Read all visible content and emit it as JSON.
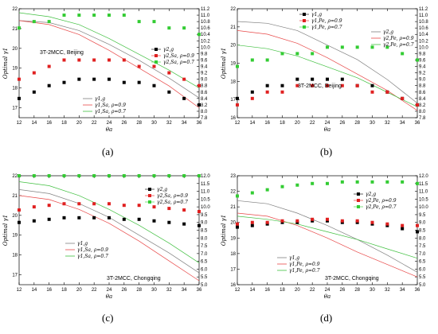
{
  "chart_data": [
    {
      "type": "line",
      "caption": "(a)",
      "site_label": "3T-2MCC, Beijing",
      "xlabel": "θa",
      "ylabel": "Optimal γ1",
      "xlim": [
        12,
        36
      ],
      "ylim": [
        16.5,
        22
      ],
      "y2lim": [
        7.8,
        11.2
      ],
      "xticks": [
        12,
        14,
        16,
        18,
        20,
        22,
        24,
        26,
        28,
        30,
        32,
        34,
        36
      ],
      "yticks": [
        17,
        18,
        19,
        20,
        21,
        22
      ],
      "y2ticks": [
        7.8,
        8.0,
        8.2,
        8.4,
        8.6,
        8.8,
        9.0,
        9.2,
        9.4,
        9.6,
        9.8,
        10.0,
        10.2,
        10.4,
        10.6,
        10.8,
        11.0,
        11.2
      ],
      "legend_upper": [
        "γ2,g",
        "γ2,Sa, ρ=0.9",
        "γ2,Sa, ρ=0.7"
      ],
      "legend_lower": [
        "γ1,g",
        "γ1,Sa, ρ=0.9",
        "γ1,Sa, ρ=0.7"
      ],
      "series": [
        {
          "style": "line",
          "color": "#808080",
          "axis": "left",
          "x": [
            12,
            16,
            20,
            24,
            28,
            32,
            36
          ],
          "y": [
            21.4,
            21.3,
            20.9,
            20.2,
            19.4,
            18.5,
            17.5
          ]
        },
        {
          "style": "line",
          "color": "#e84848",
          "axis": "left",
          "x": [
            12,
            16,
            20,
            24,
            28,
            32,
            36
          ],
          "y": [
            21.4,
            21.2,
            20.7,
            19.9,
            19.0,
            18.1,
            17.0
          ]
        },
        {
          "style": "line",
          "color": "#40c040",
          "axis": "left",
          "x": [
            12,
            16,
            20,
            24,
            28,
            32,
            36
          ],
          "y": [
            21.8,
            21.6,
            21.2,
            20.5,
            19.7,
            18.9,
            18.0
          ]
        },
        {
          "style": "markers",
          "color": "#000000",
          "axis": "right",
          "x": [
            12,
            14,
            16,
            18,
            20,
            22,
            24,
            26,
            28,
            30,
            32,
            34,
            36
          ],
          "y": [
            8.4,
            8.6,
            8.8,
            8.9,
            9.0,
            9.0,
            9.0,
            8.9,
            8.9,
            8.8,
            8.6,
            8.4,
            8.2
          ]
        },
        {
          "style": "markers",
          "color": "#e02020",
          "axis": "right",
          "x": [
            12,
            14,
            16,
            18,
            20,
            22,
            24,
            26,
            28,
            30,
            32,
            34,
            36
          ],
          "y": [
            9.0,
            9.2,
            9.4,
            9.6,
            9.6,
            9.6,
            9.6,
            9.6,
            9.4,
            9.4,
            9.2,
            9.0,
            8.8
          ]
        },
        {
          "style": "markers",
          "color": "#33cc33",
          "axis": "right",
          "x": [
            12,
            14,
            16,
            18,
            20,
            22,
            24,
            26,
            28,
            30,
            32,
            34,
            36
          ],
          "y": [
            10.6,
            10.8,
            10.8,
            11.0,
            11.0,
            11.0,
            11.0,
            11.0,
            10.8,
            10.8,
            10.6,
            10.6,
            10.4
          ]
        }
      ]
    },
    {
      "type": "line",
      "caption": "(b)",
      "site_label": "3T-2MCC, Beijing",
      "xlabel": "θa",
      "ylabel": "Optimal γ1",
      "xlim": [
        12,
        36
      ],
      "ylim": [
        16,
        22
      ],
      "y2lim": [
        7.8,
        11.2
      ],
      "xticks": [
        12,
        14,
        16,
        18,
        20,
        22,
        24,
        26,
        28,
        30,
        32,
        34,
        36
      ],
      "yticks": [
        16,
        17,
        18,
        19,
        20,
        21,
        22
      ],
      "y2ticks": [
        7.8,
        8.0,
        8.2,
        8.4,
        8.6,
        8.8,
        9.0,
        9.2,
        9.4,
        9.6,
        9.8,
        10.0,
        10.2,
        10.4,
        10.6,
        10.8,
        11.0,
        11.2
      ],
      "legend_upper": [
        "γ1,g",
        "γ1,Pe, ρ=0.9",
        "γ1,Pe, ρ=0.7"
      ],
      "legend_lower": [
        "γ2,g",
        "γ2,Pe, ρ=0.9",
        "γ2,Pe, ρ=0.7"
      ],
      "series": [
        {
          "style": "line",
          "color": "#808080",
          "axis": "left",
          "x": [
            12,
            16,
            20,
            24,
            28,
            32,
            36
          ],
          "y": [
            21.3,
            21.2,
            20.8,
            20.0,
            19.2,
            18.1,
            16.8
          ]
        },
        {
          "style": "line",
          "color": "#e84848",
          "axis": "left",
          "x": [
            12,
            16,
            20,
            24,
            28,
            32,
            36
          ],
          "y": [
            20.8,
            20.6,
            20.1,
            19.3,
            18.4,
            17.5,
            16.4
          ]
        },
        {
          "style": "line",
          "color": "#40c040",
          "axis": "left",
          "x": [
            12,
            16,
            20,
            24,
            28,
            32,
            36
          ],
          "y": [
            20.0,
            19.8,
            19.4,
            18.8,
            18.2,
            17.4,
            16.6
          ]
        },
        {
          "style": "markers",
          "color": "#000000",
          "axis": "right",
          "x": [
            12,
            14,
            16,
            18,
            20,
            22,
            24,
            26,
            28,
            30,
            32,
            34,
            36
          ],
          "y": [
            8.4,
            8.6,
            8.8,
            8.8,
            9.0,
            9.0,
            9.0,
            9.0,
            8.8,
            8.8,
            8.6,
            8.4,
            8.2
          ]
        },
        {
          "style": "markers",
          "color": "#e02020",
          "axis": "right",
          "x": [
            12,
            14,
            16,
            18,
            20,
            22,
            24,
            26,
            28,
            30,
            32,
            34,
            36
          ],
          "y": [
            8.2,
            8.4,
            8.6,
            8.6,
            8.8,
            8.8,
            8.8,
            8.8,
            8.8,
            8.6,
            8.6,
            8.4,
            8.2
          ]
        },
        {
          "style": "markers",
          "color": "#33cc33",
          "axis": "right",
          "x": [
            12,
            14,
            16,
            18,
            20,
            22,
            24,
            26,
            28,
            30,
            32,
            34,
            36
          ],
          "y": [
            9.4,
            9.6,
            9.6,
            9.8,
            9.8,
            9.8,
            10.0,
            10.0,
            10.0,
            10.0,
            10.0,
            9.8,
            9.6
          ]
        }
      ]
    },
    {
      "type": "line",
      "caption": "(c)",
      "site_label": "3T-2MCC, Chongqing",
      "xlabel": "θa",
      "ylabel": "Optimal γ1",
      "xlim": [
        12,
        36
      ],
      "ylim": [
        16.5,
        22
      ],
      "y2lim": [
        5.0,
        12.0
      ],
      "xticks": [
        12,
        14,
        16,
        18,
        20,
        22,
        24,
        26,
        28,
        30,
        32,
        34,
        36
      ],
      "yticks": [
        17,
        18,
        19,
        20,
        21,
        22
      ],
      "y2ticks": [
        5.0,
        5.5,
        6.0,
        6.5,
        7.0,
        7.5,
        8.0,
        8.5,
        9.0,
        9.5,
        10.0,
        10.5,
        11.0,
        11.5,
        12.0
      ],
      "legend_upper": [
        "γ2,g",
        "γ2,Sa, ρ=0.9",
        "γ2,Sa, ρ=0.7"
      ],
      "legend_lower": [
        "γ1,g",
        "γ1,Sa, ρ=0.9",
        "γ1,Sa, ρ=0.7"
      ],
      "series": [
        {
          "style": "line",
          "color": "#808080",
          "axis": "left",
          "x": [
            12,
            16,
            20,
            24,
            28,
            32,
            36
          ],
          "y": [
            21.3,
            21.1,
            20.6,
            19.9,
            19.0,
            18.1,
            17.1
          ]
        },
        {
          "style": "line",
          "color": "#e84848",
          "axis": "left",
          "x": [
            12,
            16,
            20,
            24,
            28,
            32,
            36
          ],
          "y": [
            21.0,
            20.8,
            20.3,
            19.6,
            18.7,
            17.7,
            16.7
          ]
        },
        {
          "style": "line",
          "color": "#40c040",
          "axis": "left",
          "x": [
            12,
            16,
            20,
            24,
            28,
            32,
            36
          ],
          "y": [
            21.7,
            21.5,
            21.0,
            20.3,
            19.5,
            18.6,
            17.6
          ]
        },
        {
          "style": "markers",
          "color": "#000000",
          "axis": "right",
          "x": [
            12,
            14,
            16,
            18,
            20,
            22,
            24,
            26,
            28,
            30,
            32,
            34,
            36
          ],
          "y": [
            9.0,
            9.1,
            9.2,
            9.3,
            9.3,
            9.3,
            9.3,
            9.2,
            9.2,
            9.1,
            9.0,
            8.9,
            8.8
          ]
        },
        {
          "style": "markers",
          "color": "#e02020",
          "axis": "right",
          "x": [
            12,
            14,
            16,
            18,
            20,
            22,
            24,
            26,
            28,
            30,
            32,
            34,
            36
          ],
          "y": [
            9.8,
            10.0,
            10.1,
            10.2,
            10.2,
            10.2,
            10.2,
            10.1,
            10.1,
            10.0,
            9.9,
            9.8,
            9.7
          ]
        },
        {
          "style": "markers",
          "color": "#33cc33",
          "axis": "right",
          "x": [
            12,
            14,
            16,
            18,
            20,
            22,
            24,
            26,
            28,
            30,
            32,
            34,
            36
          ],
          "y": [
            12.0,
            12.0,
            12.0,
            12.0,
            12.0,
            12.0,
            12.0,
            12.0,
            12.0,
            12.0,
            12.0,
            12.0,
            12.0
          ]
        }
      ]
    },
    {
      "type": "line",
      "caption": "(d)",
      "site_label": "3T-2MCC, Chongqing",
      "xlabel": "θa",
      "ylabel": "Optimal γ1",
      "xlim": [
        12,
        36
      ],
      "ylim": [
        16,
        23
      ],
      "y2lim": [
        5.0,
        12.0
      ],
      "xticks": [
        12,
        14,
        16,
        18,
        20,
        22,
        24,
        26,
        28,
        30,
        32,
        34,
        36
      ],
      "yticks": [
        16,
        17,
        18,
        19,
        20,
        21,
        22,
        23
      ],
      "y2ticks": [
        5.0,
        5.5,
        6.0,
        6.5,
        7.0,
        7.5,
        8.0,
        8.5,
        9.0,
        9.5,
        10.0,
        10.5,
        11.0,
        11.5,
        12.0
      ],
      "legend_upper": [
        "γ2,g",
        "γ2,Pe, ρ=0.9",
        "γ2,Pe, ρ=0.7"
      ],
      "legend_lower": [
        "γ1,g",
        "γ1,Pe, ρ=0.9",
        "γ1,Pe, ρ=0.7"
      ],
      "series": [
        {
          "style": "line",
          "color": "#808080",
          "axis": "left",
          "x": [
            12,
            16,
            20,
            24,
            28,
            32,
            36
          ],
          "y": [
            21.4,
            21.2,
            20.6,
            19.8,
            18.9,
            17.9,
            16.8
          ]
        },
        {
          "style": "line",
          "color": "#e84848",
          "axis": "left",
          "x": [
            12,
            16,
            20,
            24,
            28,
            32,
            36
          ],
          "y": [
            20.6,
            20.4,
            19.8,
            19.0,
            18.1,
            17.3,
            16.5
          ]
        },
        {
          "style": "line",
          "color": "#40c040",
          "axis": "left",
          "x": [
            12,
            16,
            20,
            24,
            28,
            32,
            36
          ],
          "y": [
            20.4,
            20.2,
            19.9,
            19.4,
            18.9,
            18.3,
            17.7
          ]
        },
        {
          "style": "markers",
          "color": "#000000",
          "axis": "right",
          "x": [
            12,
            14,
            16,
            18,
            20,
            22,
            24,
            26,
            28,
            30,
            32,
            34,
            36
          ],
          "y": [
            8.7,
            8.8,
            8.9,
            9.0,
            9.0,
            9.1,
            9.1,
            9.0,
            9.0,
            8.9,
            8.8,
            8.6,
            8.4
          ]
        },
        {
          "style": "markers",
          "color": "#e02020",
          "axis": "right",
          "x": [
            12,
            14,
            16,
            18,
            20,
            22,
            24,
            26,
            28,
            30,
            32,
            34,
            36
          ],
          "y": [
            8.9,
            9.0,
            9.0,
            9.1,
            9.1,
            9.2,
            9.2,
            9.1,
            9.1,
            9.0,
            8.9,
            8.8,
            8.8
          ]
        },
        {
          "style": "markers",
          "color": "#33cc33",
          "axis": "right",
          "x": [
            12,
            14,
            16,
            18,
            20,
            22,
            24,
            26,
            28,
            30,
            32,
            34,
            36
          ],
          "y": [
            10.7,
            10.9,
            11.1,
            11.3,
            11.4,
            11.5,
            11.5,
            11.6,
            11.6,
            11.6,
            11.6,
            11.6,
            11.5
          ]
        }
      ]
    }
  ]
}
